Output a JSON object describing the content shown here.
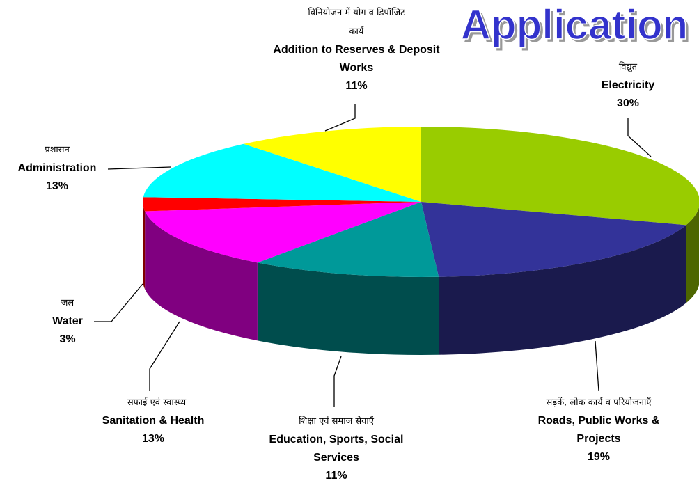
{
  "chart_data": {
    "type": "pie",
    "title": "Application",
    "categories": [
      "Electricity",
      "Roads, Public Works & Projects",
      "Education, Sports, Social Services",
      "Sanitation & Health",
      "Water",
      "Administration",
      "Addition to Reserves & Deposit Works"
    ],
    "labels_hi": [
      "विद्युत",
      "सड़कें, लोक कार्य व परियोजनाएँ",
      "शिक्षा एवं समाज सेवाएँ",
      "सफाई एवं स्वास्थ्य",
      "जल",
      "प्रशासन",
      "विनियोजन में योग व डिपॉजिट कार्य"
    ],
    "values": [
      30,
      19,
      11,
      13,
      3,
      13,
      11
    ],
    "value_labels": [
      "30%",
      "19%",
      "11%",
      "13%",
      "3%",
      "13%",
      "11%"
    ],
    "colors": [
      "#99cc00",
      "#333399",
      "#009999",
      "#ff00ff",
      "#ff0000",
      "#00ffff",
      "#ffff00"
    ]
  }
}
